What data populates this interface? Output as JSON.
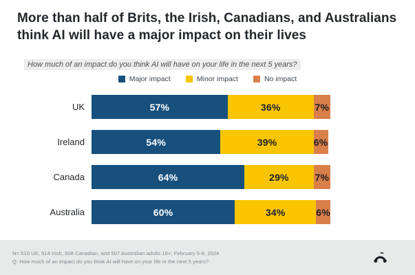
{
  "header": {
    "title": "More than half of Brits, the Irish, Canadians, and Australians think AI will have a major impact on their lives"
  },
  "subtitle": "How much of an impact do you think AI will have on your life in the next 5 years?",
  "chart_data": {
    "type": "bar",
    "stacked": true,
    "orientation": "horizontal",
    "categories": [
      "UK",
      "Ireland",
      "Canada",
      "Australia"
    ],
    "series": [
      {
        "name": "Major impact",
        "color": "#17507d",
        "label_color": "#ffffff",
        "values": [
          57,
          54,
          64,
          60
        ]
      },
      {
        "name": "Minor impact",
        "color": "#f8c500",
        "label_color": "#1c1f24",
        "values": [
          36,
          39,
          29,
          34
        ]
      },
      {
        "name": "No impact",
        "color": "#d97f4a",
        "label_color": "#1c1f24",
        "values": [
          7,
          6,
          7,
          6
        ]
      }
    ],
    "value_suffix": "%",
    "xlim": [
      0,
      100
    ],
    "legend_position": "top",
    "grid": false
  },
  "footer": {
    "line1": "N= 510 UK, 514 Irish, 508 Canadian, and 507 Australian adults 18+; February 5-8, 2024",
    "line2": "Q: How much of an impact do you think AI will have on your life in the next 5 years?"
  },
  "colors": {
    "footer_background": "#e8e9e9",
    "logo": "#1a1f24"
  }
}
